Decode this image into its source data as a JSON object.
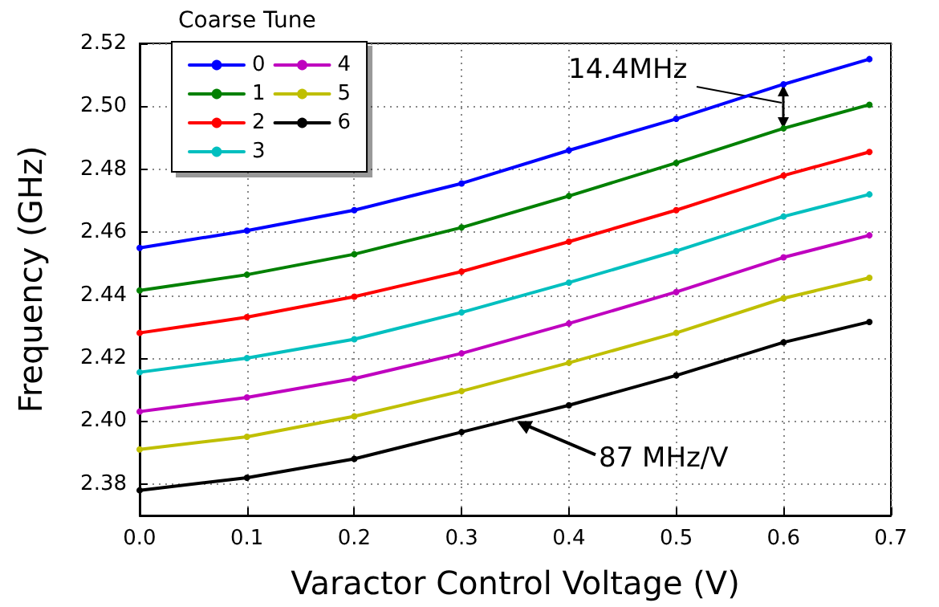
{
  "chart_data": {
    "type": "line",
    "xlabel": "Varactor Control Voltage (V)",
    "ylabel": "Frequency (GHz)",
    "legend_title": "Coarse Tune",
    "legend": "top left",
    "grid": true,
    "marker": "circle",
    "line_style": "solid",
    "x": [
      0,
      0.1,
      0.2,
      0.3,
      0.4,
      0.5,
      0.6,
      0.68
    ],
    "xlim": [
      0,
      0.7
    ],
    "xticks": [
      {
        "value": 0,
        "label": "0.0"
      },
      0.1,
      0.2,
      0.3,
      0.4,
      0.5,
      0.6,
      0.7
    ],
    "ylim": [
      2.37,
      2.52
    ],
    "yticks": [
      {
        "value": 2.38,
        "label": "2.38"
      },
      {
        "value": 2.4,
        "label": "2.40"
      },
      {
        "value": 2.42,
        "label": "2.42"
      },
      {
        "value": 2.44,
        "label": "2.44"
      },
      {
        "value": 2.46,
        "label": "2.46"
      },
      {
        "value": 2.48,
        "label": "2.48"
      },
      {
        "value": 2.5,
        "label": "2.50"
      },
      {
        "value": 2.52,
        "label": "2.52"
      }
    ],
    "series": [
      {
        "name": "0",
        "color": "#0000ff",
        "values": [
          2.455,
          2.4605,
          2.467,
          2.4755,
          2.486,
          2.496,
          2.507,
          2.515
        ]
      },
      {
        "name": "1",
        "color": "#008000",
        "values": [
          2.4415,
          2.4465,
          2.453,
          2.4615,
          2.4715,
          2.482,
          2.493,
          2.5005
        ]
      },
      {
        "name": "2",
        "color": "#ff0000",
        "values": [
          2.428,
          2.433,
          2.4395,
          2.4475,
          2.457,
          2.467,
          2.478,
          2.4855
        ]
      },
      {
        "name": "3",
        "color": "#00bfbf",
        "values": [
          2.4155,
          2.42,
          2.426,
          2.4345,
          2.444,
          2.454,
          2.465,
          2.472
        ]
      },
      {
        "name": "4",
        "color": "#bf00bf",
        "values": [
          2.403,
          2.4075,
          2.4135,
          2.4215,
          2.431,
          2.441,
          2.452,
          2.459
        ]
      },
      {
        "name": "5",
        "color": "#bfbf00",
        "values": [
          2.391,
          2.395,
          2.4015,
          2.4095,
          2.4185,
          2.428,
          2.439,
          2.4455
        ]
      },
      {
        "name": "6",
        "color": "#000000",
        "values": [
          2.378,
          2.382,
          2.388,
          2.3965,
          2.405,
          2.4145,
          2.425,
          2.4315
        ]
      }
    ],
    "annotations": [
      "14.4MHz",
      {
        "text": "87 MHz/V",
        "x": 0.35,
        "y": 2.4005
      }
    ]
  }
}
